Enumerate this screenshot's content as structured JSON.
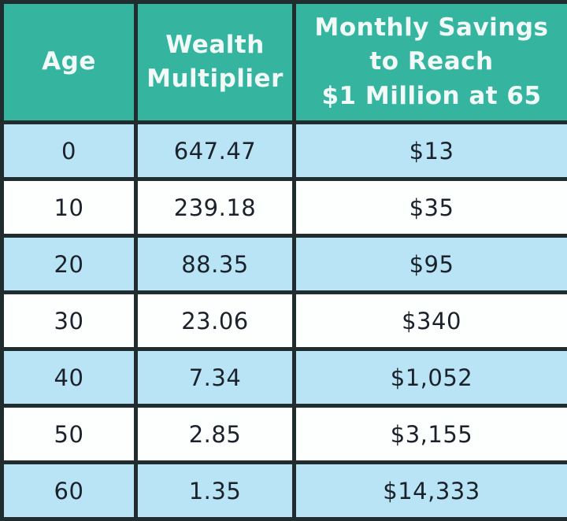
{
  "table": {
    "headers": [
      "Age",
      "Wealth\nMultiplier",
      "Monthly Savings\nto Reach\n$1 Million at 65"
    ],
    "rows": [
      {
        "cells": [
          "0",
          "647.47",
          "$13"
        ]
      },
      {
        "cells": [
          "10",
          "239.18",
          "$35"
        ]
      },
      {
        "cells": [
          "20",
          "88.35",
          "$95"
        ]
      },
      {
        "cells": [
          "30",
          "23.06",
          "$340"
        ]
      },
      {
        "cells": [
          "40",
          "7.34",
          "$1,052"
        ]
      },
      {
        "cells": [
          "50",
          "2.85",
          "$3,155"
        ]
      },
      {
        "cells": [
          "60",
          "1.35",
          "$14,333"
        ]
      }
    ]
  },
  "colors": {
    "header_bg": "#35b5a0",
    "header_text": "#f2faf8",
    "row_bg": "#fdfefe",
    "row_alt_bg": "#b9e4f5",
    "border": "#212c2f",
    "body_text": "#1c222c"
  },
  "chart_data": {
    "type": "table",
    "columns": [
      "Age",
      "Wealth Multiplier",
      "Monthly Savings to Reach $1 Million at 65"
    ],
    "rows": [
      [
        0,
        647.47,
        "$13"
      ],
      [
        10,
        239.18,
        "$35"
      ],
      [
        20,
        88.35,
        "$95"
      ],
      [
        30,
        23.06,
        "$340"
      ],
      [
        40,
        7.34,
        "$1,052"
      ],
      [
        50,
        2.85,
        "$3,155"
      ],
      [
        60,
        1.35,
        "$14,333"
      ]
    ]
  }
}
